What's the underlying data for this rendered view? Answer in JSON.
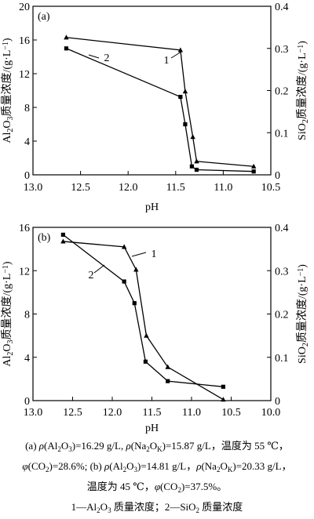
{
  "chart_data": [
    {
      "type": "line",
      "panel_label": "(a)",
      "xlabel": "pH",
      "ylabel_left": "Al₂O₃质量浓度/(g·L⁻¹)",
      "ylabel_right": "SiO₂质量浓度/(g·L⁻¹)",
      "xlim": [
        13.0,
        10.5
      ],
      "ylim_left": [
        0,
        20
      ],
      "ylim_right": [
        0,
        0.4
      ],
      "x_ticks": [
        "13.0",
        "12.5",
        "12.0",
        "11.5",
        "11.0",
        "10.5"
      ],
      "x_tick_values": [
        13.0,
        12.5,
        12.0,
        11.5,
        11.0,
        10.5
      ],
      "y_left_ticks": [
        "0",
        "4",
        "8",
        "12",
        "16",
        "20"
      ],
      "y_left_tick_values": [
        0,
        4,
        8,
        12,
        16,
        20
      ],
      "y_right_ticks": [
        "0",
        "0.1",
        "0.2",
        "0.3",
        "0.4"
      ],
      "y_right_tick_values": [
        0,
        0.1,
        0.2,
        0.3,
        0.4
      ],
      "series": [
        {
          "name": "1",
          "axis": "left",
          "marker": "triangle",
          "x": [
            12.65,
            11.45,
            11.4,
            11.32,
            11.28,
            10.68
          ],
          "y": [
            16.3,
            14.8,
            9.9,
            4.5,
            1.6,
            1.0
          ]
        },
        {
          "name": "2",
          "axis": "right",
          "marker": "square",
          "x": [
            12.65,
            11.45,
            11.4,
            11.33,
            11.28,
            10.68
          ],
          "y": [
            0.3,
            0.185,
            0.12,
            0.02,
            0.012,
            0.008
          ]
        }
      ]
    },
    {
      "type": "line",
      "panel_label": "(b)",
      "xlabel": "pH",
      "ylabel_left": "Al₂O₃质量浓度/(g·L⁻¹)",
      "ylabel_right": "SiO₂质量浓度/(g·L⁻¹)",
      "xlim": [
        13.0,
        10.0
      ],
      "ylim_left": [
        0,
        16
      ],
      "ylim_right": [
        0,
        0.4
      ],
      "x_ticks": [
        "13.0",
        "12.5",
        "12.0",
        "11.5",
        "11.0",
        "10.5",
        "10.0"
      ],
      "x_tick_values": [
        13.0,
        12.5,
        12.0,
        11.5,
        11.0,
        10.5,
        10.0
      ],
      "y_left_ticks": [
        "0",
        "4",
        "8",
        "12",
        "16"
      ],
      "y_left_tick_values": [
        0,
        4,
        8,
        12,
        16
      ],
      "y_right_ticks": [
        "0",
        "0.1",
        "0.2",
        "0.3",
        "0.4"
      ],
      "y_right_tick_values": [
        0,
        0.1,
        0.2,
        0.3,
        0.4
      ],
      "series": [
        {
          "name": "1",
          "axis": "left",
          "marker": "triangle",
          "x": [
            12.62,
            11.85,
            11.7,
            11.57,
            11.3,
            10.6
          ],
          "y": [
            14.7,
            14.2,
            12.1,
            6.0,
            3.1,
            0.1
          ]
        },
        {
          "name": "2",
          "axis": "right",
          "marker": "square",
          "x": [
            12.62,
            11.85,
            11.72,
            11.58,
            11.3,
            10.6
          ],
          "y": [
            0.383,
            0.275,
            0.225,
            0.09,
            0.045,
            0.032
          ]
        }
      ]
    }
  ],
  "caption": {
    "line1_parts": [
      "(a) ",
      "ρ",
      "(Al",
      "2",
      "O",
      "3",
      ")=16.29 g/L, ",
      "ρ",
      "(Na",
      "2",
      "O",
      "K",
      ")=15.87 g/L，温度为 55 ℃，"
    ],
    "line2_parts": [
      "φ",
      "(CO",
      "2",
      ")=28.6%; (b) ",
      "ρ",
      "(Al",
      "2",
      "O",
      "3",
      ")=14.81 g/L，",
      "ρ",
      "(Na",
      "2",
      "O",
      "K",
      ")=20.33 g/L，"
    ],
    "line3_parts": [
      "温度为 45 ℃，",
      "φ",
      "(CO",
      "2",
      ")=37.5%。"
    ],
    "line4_parts": [
      "1—Al",
      "2",
      "O",
      "3",
      " 质量浓度；2—SiO",
      "2",
      " 质量浓度"
    ]
  }
}
